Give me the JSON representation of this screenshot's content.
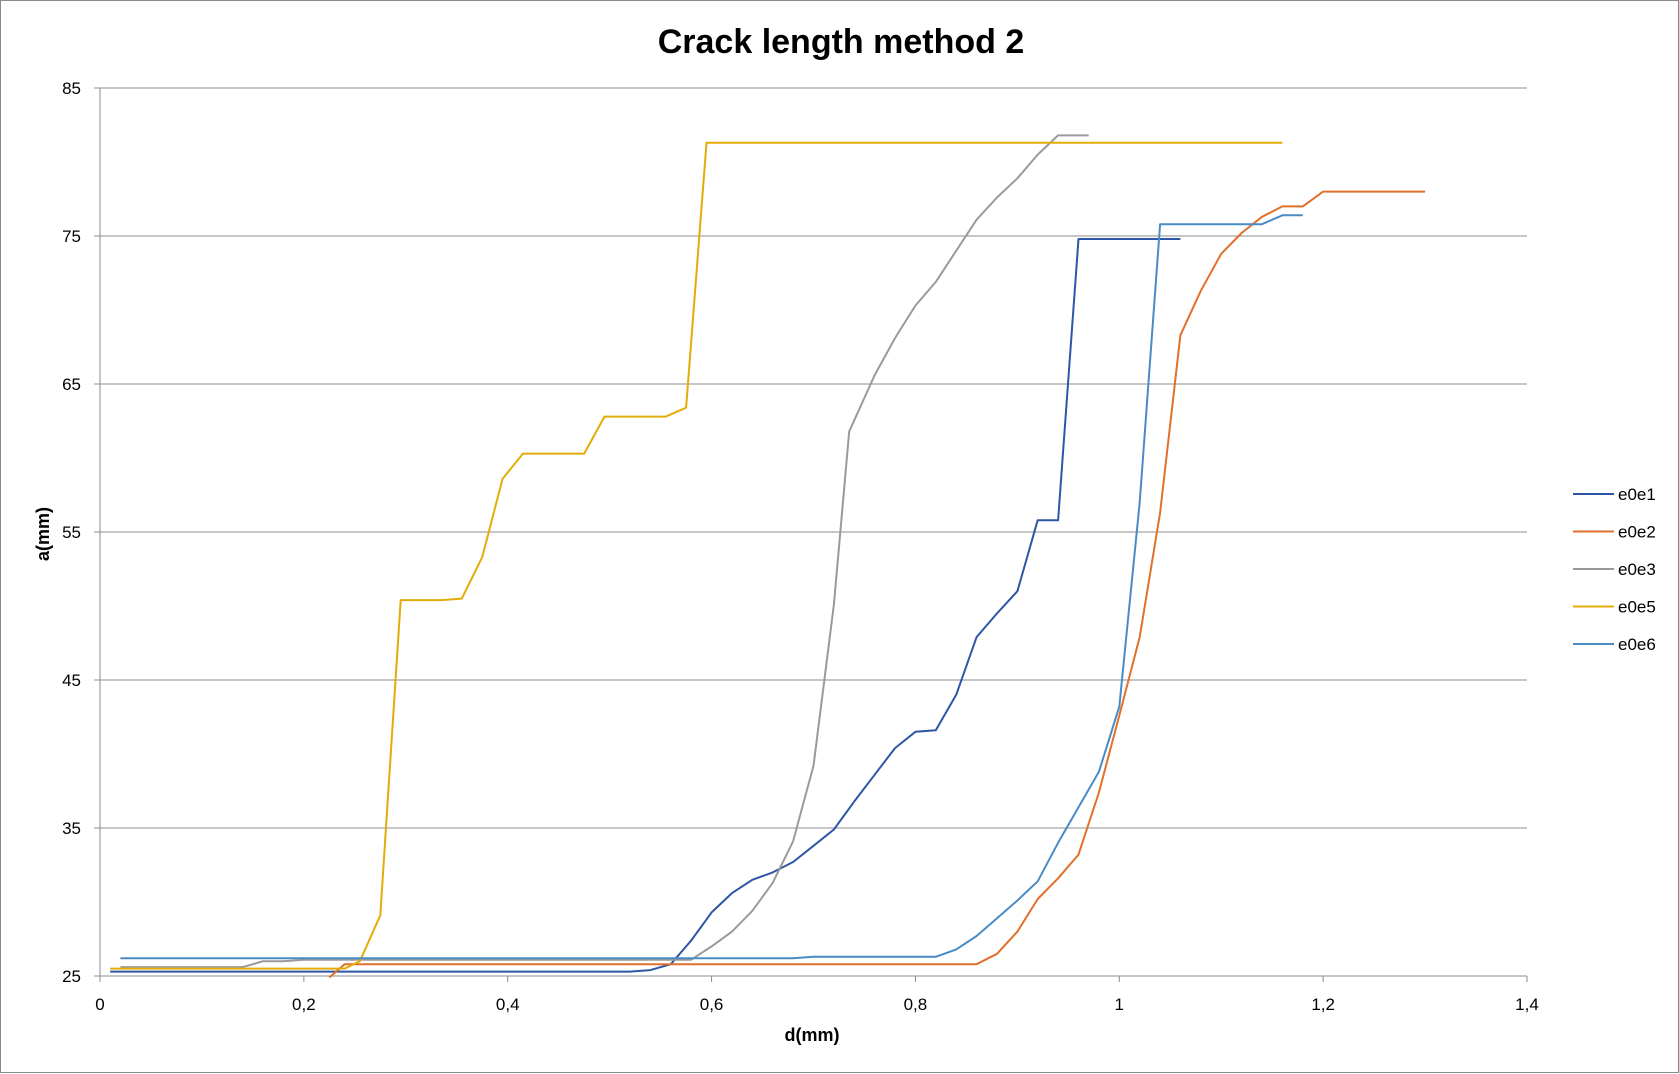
{
  "chart_data": {
    "type": "line",
    "title": "Crack length method 2",
    "xlabel": "d(mm)",
    "ylabel": "a(mm)",
    "xlim": [
      0,
      1.4
    ],
    "ylim": [
      25,
      85
    ],
    "xticks": [
      "0",
      "0,2",
      "0,4",
      "0,6",
      "0,8",
      "1",
      "1,2",
      "1,4"
    ],
    "yticks": [
      "25",
      "35",
      "45",
      "55",
      "65",
      "75",
      "85"
    ],
    "grid": "horizontal",
    "legend_position": "right",
    "series": [
      {
        "name": "e0e1",
        "color": "#2E56A6",
        "points": [
          [
            0.01,
            25.3
          ],
          [
            0.1,
            25.3
          ],
          [
            0.2,
            25.3
          ],
          [
            0.3,
            25.3
          ],
          [
            0.4,
            25.3
          ],
          [
            0.5,
            25.3
          ],
          [
            0.52,
            25.3
          ],
          [
            0.54,
            25.4
          ],
          [
            0.56,
            25.8
          ],
          [
            0.58,
            27.4
          ],
          [
            0.6,
            29.3
          ],
          [
            0.62,
            30.6
          ],
          [
            0.64,
            31.5
          ],
          [
            0.66,
            32.0
          ],
          [
            0.68,
            32.7
          ],
          [
            0.7,
            33.8
          ],
          [
            0.72,
            34.9
          ],
          [
            0.74,
            36.8
          ],
          [
            0.76,
            38.6
          ],
          [
            0.78,
            40.4
          ],
          [
            0.8,
            41.5
          ],
          [
            0.82,
            41.6
          ],
          [
            0.84,
            44.0
          ],
          [
            0.86,
            47.9
          ],
          [
            0.88,
            49.5
          ],
          [
            0.9,
            51.0
          ],
          [
            0.92,
            55.8
          ],
          [
            0.94,
            55.8
          ],
          [
            0.96,
            74.8
          ],
          [
            0.98,
            74.8
          ],
          [
            1.0,
            74.8
          ],
          [
            1.02,
            74.8
          ],
          [
            1.04,
            74.8
          ],
          [
            1.06,
            74.8
          ]
        ]
      },
      {
        "name": "e0e2",
        "color": "#E0702A",
        "points": [
          [
            0.225,
            24.9
          ],
          [
            0.24,
            25.8
          ],
          [
            0.26,
            25.8
          ],
          [
            0.3,
            25.8
          ],
          [
            0.4,
            25.8
          ],
          [
            0.5,
            25.8
          ],
          [
            0.6,
            25.8
          ],
          [
            0.7,
            25.8
          ],
          [
            0.8,
            25.8
          ],
          [
            0.86,
            25.8
          ],
          [
            0.88,
            26.5
          ],
          [
            0.9,
            28.0
          ],
          [
            0.92,
            30.2
          ],
          [
            0.94,
            31.6
          ],
          [
            0.96,
            33.2
          ],
          [
            0.98,
            37.4
          ],
          [
            1.0,
            42.6
          ],
          [
            1.02,
            47.9
          ],
          [
            1.04,
            56.3
          ],
          [
            1.06,
            68.3
          ],
          [
            1.08,
            71.3
          ],
          [
            1.1,
            73.8
          ],
          [
            1.12,
            75.2
          ],
          [
            1.14,
            76.3
          ],
          [
            1.16,
            77.0
          ],
          [
            1.18,
            77.0
          ],
          [
            1.2,
            78.0
          ],
          [
            1.22,
            78.0
          ],
          [
            1.25,
            78.0
          ],
          [
            1.3,
            78.0
          ]
        ]
      },
      {
        "name": "e0e3",
        "color": "#9A9A9A",
        "points": [
          [
            0.02,
            25.6
          ],
          [
            0.08,
            25.6
          ],
          [
            0.14,
            25.6
          ],
          [
            0.16,
            26.0
          ],
          [
            0.18,
            26.0
          ],
          [
            0.2,
            26.1
          ],
          [
            0.3,
            26.1
          ],
          [
            0.4,
            26.1
          ],
          [
            0.5,
            26.1
          ],
          [
            0.58,
            26.1
          ],
          [
            0.6,
            27.0
          ],
          [
            0.62,
            28.0
          ],
          [
            0.64,
            29.4
          ],
          [
            0.66,
            31.3
          ],
          [
            0.68,
            34.1
          ],
          [
            0.7,
            39.2
          ],
          [
            0.72,
            50.1
          ],
          [
            0.735,
            61.8
          ],
          [
            0.76,
            65.6
          ],
          [
            0.78,
            68.1
          ],
          [
            0.8,
            70.3
          ],
          [
            0.82,
            71.9
          ],
          [
            0.84,
            74.0
          ],
          [
            0.86,
            76.1
          ],
          [
            0.88,
            77.6
          ],
          [
            0.9,
            78.9
          ],
          [
            0.92,
            80.5
          ],
          [
            0.94,
            81.8
          ],
          [
            0.97,
            81.8
          ]
        ]
      },
      {
        "name": "e0e5",
        "color": "#E3AC08",
        "points": [
          [
            0.01,
            25.5
          ],
          [
            0.1,
            25.5
          ],
          [
            0.2,
            25.5
          ],
          [
            0.24,
            25.5
          ],
          [
            0.255,
            26.0
          ],
          [
            0.275,
            29.1
          ],
          [
            0.295,
            50.4
          ],
          [
            0.315,
            50.4
          ],
          [
            0.335,
            50.4
          ],
          [
            0.355,
            50.5
          ],
          [
            0.375,
            53.3
          ],
          [
            0.395,
            58.6
          ],
          [
            0.415,
            60.3
          ],
          [
            0.435,
            60.3
          ],
          [
            0.455,
            60.3
          ],
          [
            0.475,
            60.3
          ],
          [
            0.495,
            62.8
          ],
          [
            0.515,
            62.8
          ],
          [
            0.535,
            62.8
          ],
          [
            0.555,
            62.8
          ],
          [
            0.575,
            63.4
          ],
          [
            0.595,
            81.3
          ],
          [
            0.7,
            81.3
          ],
          [
            0.8,
            81.3
          ],
          [
            0.9,
            81.3
          ],
          [
            1.0,
            81.3
          ],
          [
            1.1,
            81.3
          ],
          [
            1.16,
            81.3
          ]
        ]
      },
      {
        "name": "e0e6",
        "color": "#4A8BC6",
        "points": [
          [
            0.02,
            26.2
          ],
          [
            0.1,
            26.2
          ],
          [
            0.2,
            26.2
          ],
          [
            0.3,
            26.2
          ],
          [
            0.4,
            26.2
          ],
          [
            0.5,
            26.2
          ],
          [
            0.6,
            26.2
          ],
          [
            0.68,
            26.2
          ],
          [
            0.7,
            26.3
          ],
          [
            0.72,
            26.3
          ],
          [
            0.74,
            26.3
          ],
          [
            0.76,
            26.3
          ],
          [
            0.8,
            26.3
          ],
          [
            0.82,
            26.3
          ],
          [
            0.84,
            26.8
          ],
          [
            0.86,
            27.7
          ],
          [
            0.88,
            28.9
          ],
          [
            0.9,
            30.1
          ],
          [
            0.92,
            31.4
          ],
          [
            0.94,
            34.0
          ],
          [
            0.96,
            36.4
          ],
          [
            0.98,
            38.8
          ],
          [
            1.0,
            43.2
          ],
          [
            1.02,
            57.0
          ],
          [
            1.04,
            75.8
          ],
          [
            1.06,
            75.8
          ],
          [
            1.1,
            75.8
          ],
          [
            1.14,
            75.8
          ],
          [
            1.16,
            76.4
          ],
          [
            1.18,
            76.4
          ]
        ]
      }
    ]
  }
}
